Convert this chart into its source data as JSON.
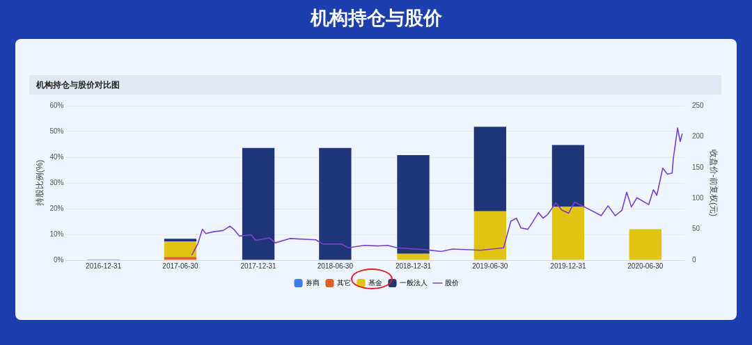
{
  "chart_data": {
    "type": "bar",
    "title": "机构持仓与股价",
    "subtitle": "机构持仓与股价对比图",
    "ylabel": "持股比例(%)",
    "y2label": "收盘价-前复权(元)",
    "x": [
      "2016-12-31",
      "2017-06-30",
      "2017-12-31",
      "2018-06-30",
      "2018-12-31",
      "2019-06-30",
      "2019-12-31",
      "2020-06-30"
    ],
    "xlim": [
      "2016-10-03",
      "2020-09-30"
    ],
    "xticks": [
      "2016-12-31",
      "2017-06-30",
      "2017-12-31",
      "2018-06-30",
      "2018-12-31",
      "2019-06-30",
      "2019-12-31",
      "2020-06-30"
    ],
    "stacked": true,
    "series": [
      {
        "name": "券商",
        "color": "#3d7fe6",
        "values": [
          0.3,
          null,
          null,
          null,
          null,
          null,
          null,
          null
        ]
      },
      {
        "name": "其它",
        "color": "#d9622b",
        "values": [
          null,
          1.2,
          null,
          null,
          null,
          null,
          null,
          null
        ]
      },
      {
        "name": "基金",
        "color": "#e0c414",
        "values": [
          null,
          6.0,
          null,
          null,
          2.5,
          19,
          20.8,
          12
        ]
      },
      {
        "name": "一般法人",
        "color": "#1f3578",
        "values": [
          null,
          1.1,
          43.6,
          43.6,
          38.3,
          32.8,
          23.9,
          null
        ]
      },
      {
        "name": "股价",
        "type": "line",
        "axis": "y2",
        "color": "#7b3fd0",
        "marker": "none",
        "x": [
          "2017-07-27",
          "2017-08-10",
          "2017-08-21",
          "2017-08-29",
          "2017-09-17",
          "2017-10-09",
          "2017-10-25",
          "2017-11-03",
          "2017-11-16",
          "2017-12-14",
          "2017-12-24",
          "2018-01-26",
          "2018-02-09",
          "2018-03-15",
          "2018-05-15",
          "2018-06-01",
          "2018-07-15",
          "2018-07-31",
          "2018-09-07",
          "2018-10-10",
          "2018-11-01",
          "2018-11-23",
          "2019-01-27",
          "2019-03-07",
          "2019-04-03",
          "2019-06-08",
          "2019-08-01",
          "2019-08-18",
          "2019-08-31",
          "2019-09-11",
          "2019-09-27",
          "2019-10-06",
          "2019-10-22",
          "2019-11-02",
          "2019-11-13",
          "2019-12-02",
          "2019-12-16",
          "2020-01-01",
          "2020-01-15",
          "2020-02-08",
          "2020-03-18",
          "2020-04-03",
          "2020-04-20",
          "2020-05-06",
          "2020-05-17",
          "2020-05-28",
          "2020-06-10",
          "2020-07-08",
          "2020-07-19",
          "2020-07-27",
          "2020-08-10",
          "2020-08-21",
          "2020-09-01",
          "2020-09-04",
          "2020-09-14",
          "2020-09-20",
          "2020-09-25"
        ],
        "values": [
          8,
          26,
          50,
          43,
          46,
          48,
          55,
          50,
          39,
          41,
          32,
          36,
          28,
          35,
          33,
          26,
          26,
          20,
          24,
          23,
          24,
          20,
          17,
          14,
          18,
          16,
          20,
          63,
          68,
          52,
          50,
          59,
          77,
          68,
          74,
          93,
          81,
          76,
          94,
          86,
          72,
          88,
          72,
          81,
          110,
          86,
          101,
          90,
          114,
          105,
          149,
          139,
          141,
          165,
          214,
          192,
          205
        ]
      }
    ],
    "ylim": [
      0,
      60
    ],
    "yticks": [
      {
        "value": 0,
        "label": "0%"
      },
      {
        "value": 10,
        "label": "10%"
      },
      {
        "value": 20,
        "label": "20%"
      },
      {
        "value": 30,
        "label": "30%"
      },
      {
        "value": 40,
        "label": "40%"
      },
      {
        "value": 50,
        "label": "50%"
      },
      {
        "value": 60,
        "label": "60%"
      }
    ],
    "y2lim": [
      0,
      250
    ],
    "y2ticks": [
      0,
      50,
      100,
      150,
      200,
      250
    ],
    "grid": "y",
    "legend": "bottom"
  }
}
